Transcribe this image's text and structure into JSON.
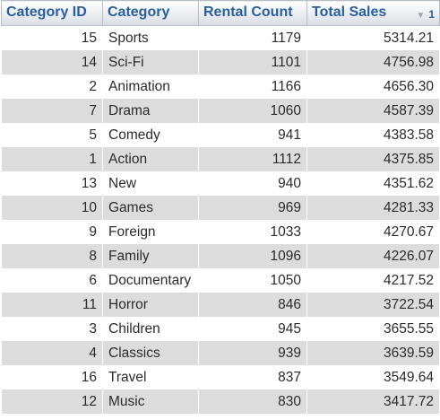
{
  "table": {
    "headers": {
      "category_id": "Category ID",
      "category": "Category",
      "rental_count": "Rental Count",
      "total_sales": "Total Sales",
      "sort_order_number": "1",
      "sort_direction_icon": "sort-descending-icon"
    },
    "rows": [
      {
        "id": "15",
        "name": "Sports",
        "count": "1179",
        "sales": "5314.21"
      },
      {
        "id": "14",
        "name": "Sci-Fi",
        "count": "1101",
        "sales": "4756.98"
      },
      {
        "id": "2",
        "name": "Animation",
        "count": "1166",
        "sales": "4656.30"
      },
      {
        "id": "7",
        "name": "Drama",
        "count": "1060",
        "sales": "4587.39"
      },
      {
        "id": "5",
        "name": "Comedy",
        "count": "941",
        "sales": "4383.58"
      },
      {
        "id": "1",
        "name": "Action",
        "count": "1112",
        "sales": "4375.85"
      },
      {
        "id": "13",
        "name": "New",
        "count": "940",
        "sales": "4351.62"
      },
      {
        "id": "10",
        "name": "Games",
        "count": "969",
        "sales": "4281.33"
      },
      {
        "id": "9",
        "name": "Foreign",
        "count": "1033",
        "sales": "4270.67"
      },
      {
        "id": "8",
        "name": "Family",
        "count": "1096",
        "sales": "4226.07"
      },
      {
        "id": "6",
        "name": "Documentary",
        "count": "1050",
        "sales": "4217.52"
      },
      {
        "id": "11",
        "name": "Horror",
        "count": "846",
        "sales": "3722.54"
      },
      {
        "id": "3",
        "name": "Children",
        "count": "945",
        "sales": "3655.55"
      },
      {
        "id": "4",
        "name": "Classics",
        "count": "939",
        "sales": "3639.59"
      },
      {
        "id": "16",
        "name": "Travel",
        "count": "837",
        "sales": "3549.64"
      },
      {
        "id": "12",
        "name": "Music",
        "count": "830",
        "sales": "3417.72"
      }
    ]
  }
}
